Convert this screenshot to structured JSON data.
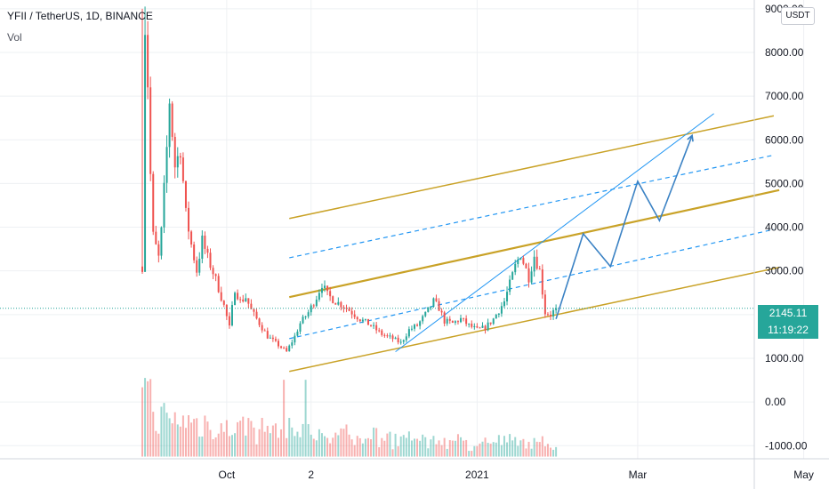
{
  "header": {
    "title": "YFII / TetherUS, 1D, BINANCE",
    "indicator": "Vol"
  },
  "toolbar": {
    "currency_label": "USDT"
  },
  "last_price": {
    "value": "2145.11",
    "countdown": "11:19:22"
  },
  "colors": {
    "up": "#26a69a",
    "down": "#ef5350",
    "channel": "#c9a227",
    "dashed": "#2196f3",
    "projection": "#3b82c4",
    "grid": "#eef0f3"
  },
  "chart_data": {
    "type": "candlestick",
    "symbol": "YFII / TetherUS",
    "interval": "1D",
    "exchange": "BINANCE",
    "y_axis": {
      "range": [
        -1300,
        9200
      ],
      "ticks": [
        {
          "value": 9000,
          "label": "9000.00"
        },
        {
          "value": 8000,
          "label": "8000.00"
        },
        {
          "value": 7000,
          "label": "7000.00"
        },
        {
          "value": 6000,
          "label": "6000.00"
        },
        {
          "value": 5000,
          "label": "5000.00"
        },
        {
          "value": 4000,
          "label": "4000.00"
        },
        {
          "value": 3000,
          "label": "3000.00"
        },
        {
          "value": 2000,
          "label": "2000.00"
        },
        {
          "value": 1000,
          "label": "1000.00"
        },
        {
          "value": 0,
          "label": "0.00"
        },
        {
          "value": -1000,
          "label": "-1000.00"
        }
      ]
    },
    "x_axis": {
      "labels": [
        {
          "day": 31,
          "label": "Oct"
        },
        {
          "day": 62,
          "label": "2"
        },
        {
          "day": 123,
          "label": "2021"
        },
        {
          "day": 182,
          "label": "Mar"
        },
        {
          "day": 243,
          "label": "May"
        }
      ]
    },
    "price_path": [
      [
        0,
        3100
      ],
      [
        1,
        8600
      ],
      [
        2,
        7300
      ],
      [
        3,
        5200
      ],
      [
        4,
        3800
      ],
      [
        6,
        3300
      ],
      [
        7,
        3900
      ],
      [
        9,
        5800
      ],
      [
        10,
        6900
      ],
      [
        12,
        5400
      ],
      [
        14,
        5800
      ],
      [
        16,
        4300
      ],
      [
        18,
        3600
      ],
      [
        20,
        3000
      ],
      [
        22,
        3700
      ],
      [
        24,
        3300
      ],
      [
        27,
        2800
      ],
      [
        30,
        2200
      ],
      [
        32,
        1700
      ],
      [
        34,
        2600
      ],
      [
        36,
        2300
      ],
      [
        38,
        2400
      ],
      [
        40,
        2100
      ],
      [
        43,
        1800
      ],
      [
        46,
        1500
      ],
      [
        50,
        1300
      ],
      [
        53,
        1150
      ],
      [
        56,
        1500
      ],
      [
        58,
        1800
      ],
      [
        61,
        2050
      ],
      [
        64,
        2400
      ],
      [
        66,
        2700
      ],
      [
        68,
        2450
      ],
      [
        71,
        2300
      ],
      [
        74,
        2200
      ],
      [
        77,
        2050
      ],
      [
        80,
        1900
      ],
      [
        84,
        1750
      ],
      [
        88,
        1550
      ],
      [
        92,
        1450
      ],
      [
        95,
        1350
      ],
      [
        98,
        1650
      ],
      [
        101,
        1750
      ],
      [
        104,
        2000
      ],
      [
        107,
        2300
      ],
      [
        109,
        2150
      ],
      [
        111,
        1850
      ],
      [
        114,
        1800
      ],
      [
        117,
        1900
      ],
      [
        120,
        1750
      ],
      [
        123,
        1650
      ],
      [
        126,
        1700
      ],
      [
        129,
        1900
      ],
      [
        131,
        2100
      ],
      [
        133,
        2300
      ],
      [
        135,
        2700
      ],
      [
        137,
        3100
      ],
      [
        139,
        3400
      ],
      [
        140,
        3200
      ],
      [
        142,
        2850
      ],
      [
        144,
        3350
      ],
      [
        146,
        3000
      ],
      [
        148,
        2050
      ],
      [
        150,
        2000
      ],
      [
        152,
        2145
      ]
    ],
    "volume_scale": {
      "base": -1250,
      "max_height": 1850
    },
    "projection_path": [
      [
        152,
        1900
      ],
      [
        162,
        3850
      ],
      [
        172,
        3100
      ],
      [
        182,
        5050
      ],
      [
        190,
        4150
      ],
      [
        202,
        6100
      ]
    ],
    "lines": [
      {
        "name": "upper-channel",
        "style": "solid",
        "from": [
          54,
          4200
        ],
        "to": [
          232,
          6550
        ]
      },
      {
        "name": "mid-upper-dashed",
        "style": "dashed",
        "from": [
          54,
          3300
        ],
        "to": [
          232,
          5650
        ]
      },
      {
        "name": "middle-channel",
        "style": "solid-thick",
        "from": [
          54,
          2400
        ],
        "to": [
          234,
          4850
        ]
      },
      {
        "name": "mid-lower-dashed",
        "style": "dashed",
        "from": [
          54,
          1450
        ],
        "to": [
          232,
          3950
        ]
      },
      {
        "name": "lower-channel",
        "style": "solid",
        "from": [
          54,
          700
        ],
        "to": [
          234,
          3080
        ]
      },
      {
        "name": "trend-line",
        "style": "thin",
        "from": [
          93,
          1150
        ],
        "to": [
          210,
          6600
        ]
      }
    ]
  }
}
